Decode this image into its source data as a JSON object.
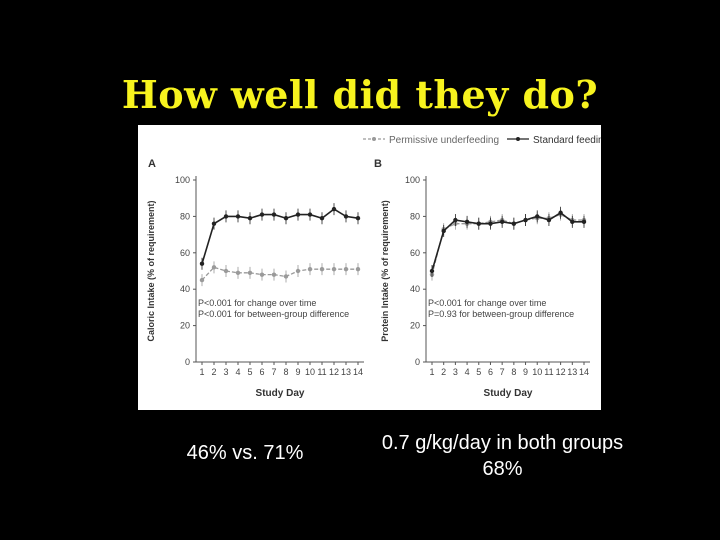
{
  "slide": {
    "title": "How well did they do?",
    "caption_left": "46% vs. 71%",
    "caption_right_line1": "0.7 g/kg/day in both groups",
    "caption_right_line2": "68%"
  },
  "legend": {
    "permissive": "Permissive underfeeding",
    "standard": "Standard feeding"
  },
  "colors": {
    "standard": "#222222",
    "permissive": "#9a9a9a",
    "title": "#f7f31e",
    "background": "#000000"
  },
  "chart_data": [
    {
      "type": "line",
      "panel_label": "A",
      "xlabel": "Study Day",
      "ylabel": "Caloric Intake (% of requirement)",
      "x": [
        1,
        2,
        3,
        4,
        5,
        6,
        7,
        8,
        9,
        10,
        11,
        12,
        13,
        14
      ],
      "ylim": [
        0,
        100
      ],
      "yticks": [
        0,
        20,
        40,
        60,
        80,
        100
      ],
      "series": [
        {
          "name": "Permissive underfeeding",
          "values": [
            45,
            52,
            50,
            49,
            49,
            48,
            48,
            47,
            50,
            51,
            51,
            51,
            51,
            51
          ]
        },
        {
          "name": "Standard feeding",
          "values": [
            54,
            76,
            80,
            80,
            79,
            81,
            81,
            79,
            81,
            81,
            79,
            84,
            80,
            79
          ]
        }
      ],
      "annotation_1": "P<0.001 for change over time",
      "annotation_2": "P<0.001 for between-group difference"
    },
    {
      "type": "line",
      "panel_label": "B",
      "xlabel": "Study Day",
      "ylabel": "Protein Intake (% of requirement)",
      "x": [
        1,
        2,
        3,
        4,
        5,
        6,
        7,
        8,
        9,
        10,
        11,
        12,
        13,
        14
      ],
      "ylim": [
        0,
        100
      ],
      "yticks": [
        0,
        20,
        40,
        60,
        80,
        100
      ],
      "series": [
        {
          "name": "Permissive underfeeding",
          "values": [
            48,
            73,
            76,
            76,
            76,
            77,
            78,
            76,
            78,
            79,
            79,
            81,
            78,
            78
          ]
        },
        {
          "name": "Standard feeding",
          "values": [
            50,
            72,
            78,
            77,
            76,
            76,
            77,
            76,
            78,
            80,
            78,
            82,
            77,
            77
          ]
        }
      ],
      "annotation_1": "P<0.001 for change over time",
      "annotation_2": "P=0.93 for between-group difference"
    }
  ]
}
